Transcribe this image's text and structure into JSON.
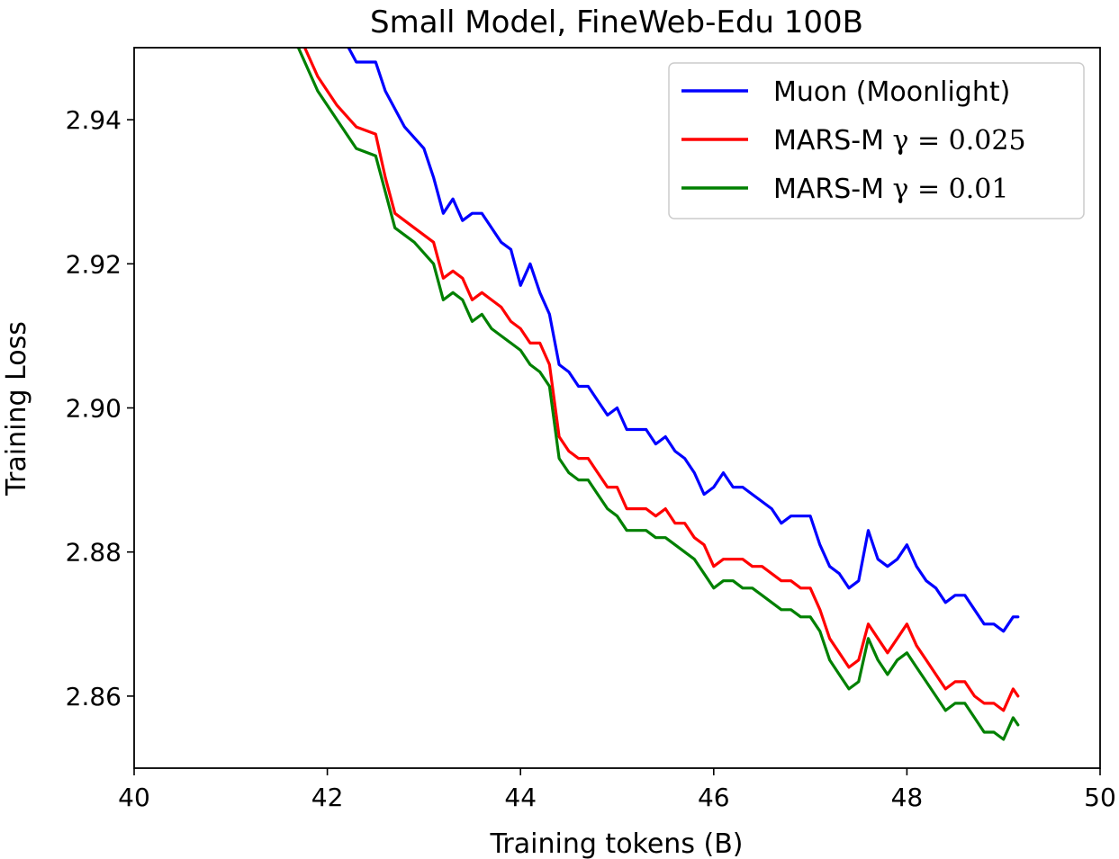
{
  "chart_data": {
    "type": "line",
    "title": "Small Model, FineWeb-Edu 100B",
    "xlabel": "Training tokens (B)",
    "ylabel": "Training Loss",
    "xlim": [
      40,
      50
    ],
    "ylim": [
      2.85,
      2.95
    ],
    "xticks": [
      "40",
      "42",
      "44",
      "46",
      "48",
      "50"
    ],
    "yticks": [
      "2.86",
      "2.88",
      "2.90",
      "2.92",
      "2.94"
    ],
    "grid": false,
    "legend_position": "top-right",
    "series": [
      {
        "name": "Muon (Moonlight)",
        "legend_main": "Muon (Moonlight)",
        "legend_math": "",
        "color": "#0000ff",
        "x": [
          41.2,
          41.8,
          42.1,
          42.3,
          42.5,
          42.6,
          42.8,
          43.0,
          43.1,
          43.2,
          43.3,
          43.4,
          43.5,
          43.6,
          43.7,
          43.8,
          43.9,
          44.0,
          44.1,
          44.2,
          44.3,
          44.4,
          44.5,
          44.6,
          44.7,
          44.8,
          44.9,
          45.0,
          45.1,
          45.2,
          45.3,
          45.4,
          45.5,
          45.6,
          45.7,
          45.8,
          45.9,
          46.0,
          46.1,
          46.2,
          46.3,
          46.4,
          46.5,
          46.6,
          46.7,
          46.8,
          46.9,
          47.0,
          47.1,
          47.2,
          47.3,
          47.4,
          47.5,
          47.6,
          47.7,
          47.8,
          47.9,
          48.0,
          48.1,
          48.2,
          48.3,
          48.4,
          48.5,
          48.6,
          48.7,
          48.8,
          48.9,
          49.0,
          49.1,
          49.15
        ],
        "y": [
          2.96,
          2.957,
          2.953,
          2.948,
          2.948,
          2.944,
          2.939,
          2.936,
          2.932,
          2.927,
          2.929,
          2.926,
          2.927,
          2.927,
          2.925,
          2.923,
          2.922,
          2.917,
          2.92,
          2.916,
          2.913,
          2.906,
          2.905,
          2.903,
          2.903,
          2.901,
          2.899,
          2.9,
          2.897,
          2.897,
          2.897,
          2.895,
          2.896,
          2.894,
          2.893,
          2.891,
          2.888,
          2.889,
          2.891,
          2.889,
          2.889,
          2.888,
          2.887,
          2.886,
          2.884,
          2.885,
          2.885,
          2.885,
          2.881,
          2.878,
          2.877,
          2.875,
          2.876,
          2.883,
          2.879,
          2.878,
          2.879,
          2.881,
          2.878,
          2.876,
          2.875,
          2.873,
          2.874,
          2.874,
          2.872,
          2.87,
          2.87,
          2.869,
          2.871,
          2.871
        ]
      },
      {
        "name": "MARS-M γ = 0.025",
        "legend_main": "MARS-M ",
        "legend_math": "γ = 0.025",
        "color": "#ff0000",
        "x": [
          41.0,
          41.4,
          41.7,
          41.9,
          42.1,
          42.3,
          42.5,
          42.6,
          42.7,
          42.9,
          43.1,
          43.2,
          43.3,
          43.4,
          43.5,
          43.6,
          43.7,
          43.8,
          43.9,
          44.0,
          44.1,
          44.2,
          44.3,
          44.4,
          44.5,
          44.6,
          44.7,
          44.8,
          44.9,
          45.0,
          45.1,
          45.2,
          45.3,
          45.4,
          45.5,
          45.6,
          45.7,
          45.8,
          45.9,
          46.0,
          46.1,
          46.2,
          46.3,
          46.4,
          46.5,
          46.6,
          46.7,
          46.8,
          46.9,
          47.0,
          47.1,
          47.2,
          47.3,
          47.4,
          47.5,
          47.6,
          47.7,
          47.8,
          47.9,
          48.0,
          48.1,
          48.2,
          48.3,
          48.4,
          48.5,
          48.6,
          48.7,
          48.8,
          48.9,
          49.0,
          49.1,
          49.15
        ],
        "y": [
          2.956,
          2.954,
          2.952,
          2.946,
          2.942,
          2.939,
          2.938,
          2.932,
          2.927,
          2.925,
          2.923,
          2.918,
          2.919,
          2.918,
          2.915,
          2.916,
          2.915,
          2.914,
          2.912,
          2.911,
          2.909,
          2.909,
          2.906,
          2.896,
          2.894,
          2.893,
          2.893,
          2.891,
          2.889,
          2.889,
          2.886,
          2.886,
          2.886,
          2.885,
          2.886,
          2.884,
          2.884,
          2.882,
          2.881,
          2.878,
          2.879,
          2.879,
          2.879,
          2.878,
          2.878,
          2.877,
          2.876,
          2.876,
          2.875,
          2.875,
          2.872,
          2.868,
          2.866,
          2.864,
          2.865,
          2.87,
          2.868,
          2.866,
          2.868,
          2.87,
          2.867,
          2.865,
          2.863,
          2.861,
          2.862,
          2.862,
          2.86,
          2.859,
          2.859,
          2.858,
          2.861,
          2.86
        ]
      },
      {
        "name": "MARS-M γ = 0.01",
        "legend_main": "MARS-M ",
        "legend_math": "γ = 0.01",
        "color": "#008000",
        "x": [
          41.0,
          41.4,
          41.7,
          41.9,
          42.1,
          42.3,
          42.5,
          42.6,
          42.7,
          42.9,
          43.1,
          43.2,
          43.3,
          43.4,
          43.5,
          43.6,
          43.7,
          43.8,
          43.9,
          44.0,
          44.1,
          44.2,
          44.3,
          44.4,
          44.5,
          44.6,
          44.7,
          44.8,
          44.9,
          45.0,
          45.1,
          45.2,
          45.3,
          45.4,
          45.5,
          45.6,
          45.7,
          45.8,
          45.9,
          46.0,
          46.1,
          46.2,
          46.3,
          46.4,
          46.5,
          46.6,
          46.7,
          46.8,
          46.9,
          47.0,
          47.1,
          47.2,
          47.3,
          47.4,
          47.5,
          47.6,
          47.7,
          47.8,
          47.9,
          48.0,
          48.1,
          48.2,
          48.3,
          48.4,
          48.5,
          48.6,
          48.7,
          48.8,
          48.9,
          49.0,
          49.1,
          49.15
        ],
        "y": [
          2.954,
          2.952,
          2.95,
          2.944,
          2.94,
          2.936,
          2.935,
          2.93,
          2.925,
          2.923,
          2.92,
          2.915,
          2.916,
          2.915,
          2.912,
          2.913,
          2.911,
          2.91,
          2.909,
          2.908,
          2.906,
          2.905,
          2.903,
          2.893,
          2.891,
          2.89,
          2.89,
          2.888,
          2.886,
          2.885,
          2.883,
          2.883,
          2.883,
          2.882,
          2.882,
          2.881,
          2.88,
          2.879,
          2.877,
          2.875,
          2.876,
          2.876,
          2.875,
          2.875,
          2.874,
          2.873,
          2.872,
          2.872,
          2.871,
          2.871,
          2.869,
          2.865,
          2.863,
          2.861,
          2.862,
          2.868,
          2.865,
          2.863,
          2.865,
          2.866,
          2.864,
          2.862,
          2.86,
          2.858,
          2.859,
          2.859,
          2.857,
          2.855,
          2.855,
          2.854,
          2.857,
          2.856
        ]
      }
    ]
  }
}
